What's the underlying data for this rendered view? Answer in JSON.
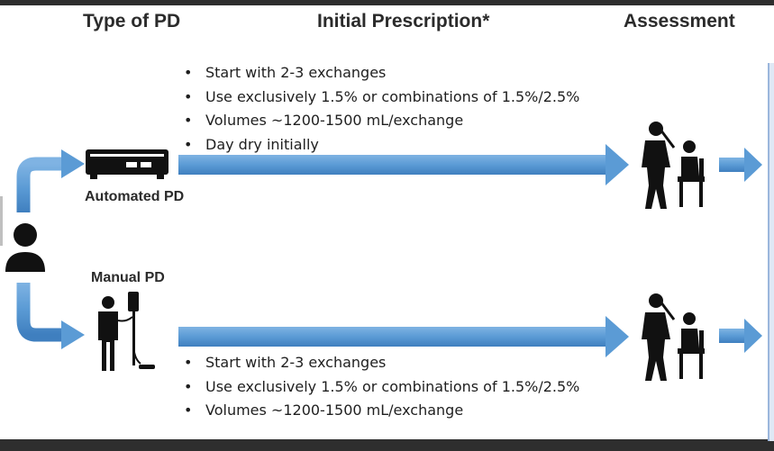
{
  "headers": {
    "type_of_pd": "Type of PD",
    "initial_prescription": "Initial Prescription*",
    "assessment": "Assessment"
  },
  "automated": {
    "label": "Automated PD",
    "bullets": [
      "Start with 2-3 exchanges",
      "Use exclusively 1.5% or combinations of 1.5%/2.5%",
      "Volumes ~1200-1500 mL/exchange",
      "Day dry initially"
    ]
  },
  "manual": {
    "label": "Manual PD",
    "bullets": [
      "Start with 2-3 exchanges",
      "Use exclusively 1.5% or combinations of 1.5%/2.5%",
      "Volumes ~1200-1500 mL/exchange"
    ]
  },
  "icons": [
    "person-icon",
    "cycler-machine-icon",
    "patient-iv-pole-icon",
    "clinician-assessment-icon"
  ],
  "colors": {
    "arrow_blue": "#5b9bd5",
    "icon_black": "#111111",
    "text": "#2b2b2b"
  }
}
